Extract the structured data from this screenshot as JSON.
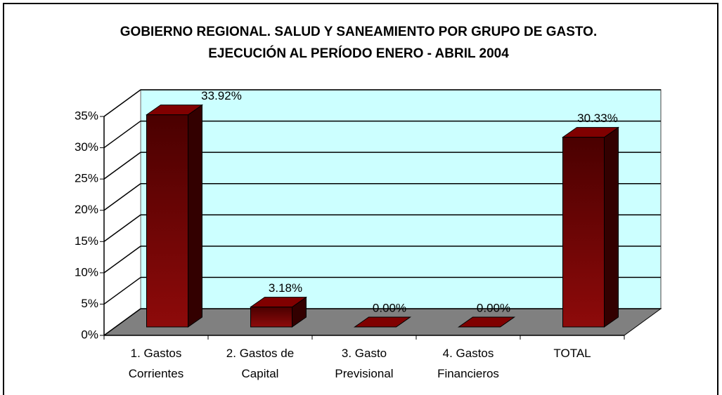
{
  "chart_data": {
    "type": "bar3d",
    "title": "GOBIERNO REGIONAL. SALUD Y SANEAMIENTO POR GRUPO DE GASTO. EJECUCIÓN AL PERÍODO ENERO - ABRIL 2004",
    "categories": [
      "1. Gastos Corrientes",
      "2. Gastos de Capital",
      "3. Gasto Previsional",
      "4. Gastos Financieros",
      "TOTAL"
    ],
    "values": [
      33.92,
      3.18,
      0,
      0,
      30.33
    ],
    "value_labels": [
      "33.92%",
      "3.18%",
      "0.00%",
      "0.00%",
      "30.33%"
    ],
    "color": "#800000",
    "ylim": [
      0,
      35
    ],
    "yticks": [
      {
        "value": 0,
        "label": "0%"
      },
      {
        "value": 5,
        "label": "5%"
      },
      {
        "value": 10,
        "label": "10%"
      },
      {
        "value": 15,
        "label": "15%"
      },
      {
        "value": 20,
        "label": "20%"
      },
      {
        "value": 25,
        "label": "25%"
      },
      {
        "value": 30,
        "label": "30%"
      },
      {
        "value": 35,
        "label": "35%"
      }
    ],
    "grid": true
  }
}
